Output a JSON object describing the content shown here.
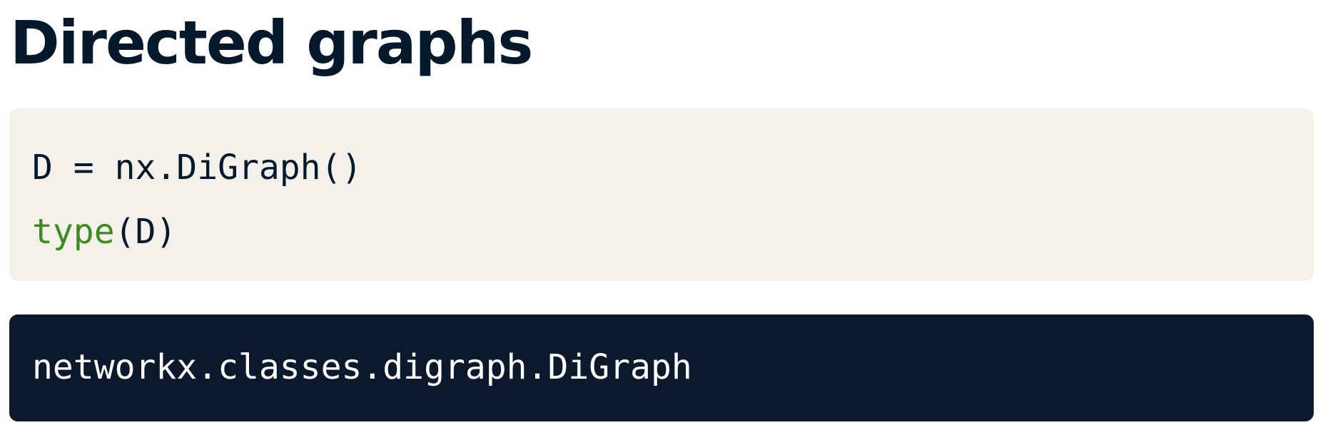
{
  "title": "Directed graphs",
  "code_input": {
    "line1": "D = nx.DiGraph()",
    "line2_builtin": "type",
    "line2_rest": "(D)"
  },
  "code_output": {
    "line1": "networkx.classes.digraph.DiGraph"
  },
  "colors": {
    "title": "#05192d",
    "input_background": "#f4f1eb",
    "output_background": "#0c192c",
    "builtin_keyword": "#3d8c1f",
    "output_text": "#ffffff"
  }
}
